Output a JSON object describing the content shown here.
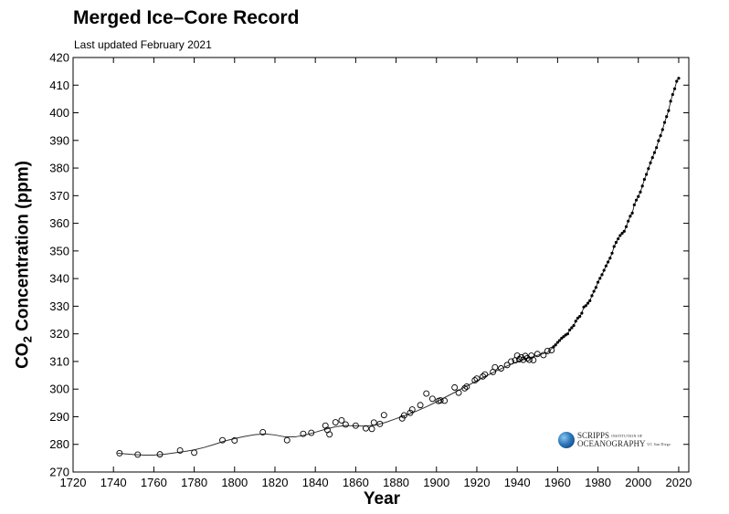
{
  "title": "Merged Ice–Core Record",
  "subtitle": "Last updated February 2021",
  "logo": {
    "line1": "SCRIPPS",
    "line1_small": "INSTITUTION OF",
    "line2": "OCEANOGRAPHY",
    "line2_small": "UC San Diego"
  },
  "chart_data": {
    "type": "scatter",
    "title": "Merged Ice–Core Record",
    "subtitle": "Last updated February 2021",
    "xlabel": "Year",
    "ylabel": {
      "prefix": "CO",
      "sub": "2",
      "suffix": " Concentration (ppm)"
    },
    "xlim": [
      1720,
      2025
    ],
    "ylim": [
      270,
      420
    ],
    "xticks": [
      1720,
      1740,
      1760,
      1780,
      1800,
      1820,
      1840,
      1860,
      1880,
      1900,
      1920,
      1940,
      1960,
      1980,
      2000,
      2020
    ],
    "yticks": [
      270,
      280,
      290,
      300,
      310,
      320,
      330,
      340,
      350,
      360,
      370,
      380,
      390,
      400,
      410,
      420
    ],
    "grid": false,
    "series": [
      {
        "marker": "open-circle",
        "points": [
          [
            1743,
            276.8
          ],
          [
            1752,
            276.3
          ],
          [
            1763,
            276.4
          ],
          [
            1773,
            277.8
          ],
          [
            1780,
            277.0
          ],
          [
            1794,
            281.5
          ],
          [
            1800,
            281.4
          ],
          [
            1814,
            284.4
          ],
          [
            1826,
            281.5
          ],
          [
            1834,
            283.8
          ],
          [
            1838,
            284.2
          ],
          [
            1845,
            286.8
          ],
          [
            1846,
            285.2
          ],
          [
            1847,
            283.6
          ],
          [
            1850,
            288.0
          ],
          [
            1853,
            288.7
          ],
          [
            1855,
            287.2
          ],
          [
            1860,
            286.8
          ],
          [
            1865,
            285.8
          ],
          [
            1868,
            285.6
          ],
          [
            1869,
            287.9
          ],
          [
            1872,
            287.4
          ],
          [
            1874,
            290.6
          ],
          [
            1883,
            289.4
          ],
          [
            1884,
            290.5
          ],
          [
            1887,
            291.4
          ],
          [
            1888,
            292.6
          ],
          [
            1892,
            294.2
          ],
          [
            1895,
            298.4
          ],
          [
            1898,
            296.5
          ],
          [
            1901,
            295.7
          ],
          [
            1902,
            295.9
          ],
          [
            1904,
            295.8
          ],
          [
            1909,
            300.6
          ],
          [
            1911,
            298.7
          ],
          [
            1914,
            300.3
          ],
          [
            1915,
            300.9
          ],
          [
            1919,
            303.2
          ],
          [
            1920,
            303.8
          ],
          [
            1923,
            304.6
          ],
          [
            1924,
            305.3
          ],
          [
            1928,
            306.2
          ],
          [
            1929,
            307.9
          ],
          [
            1932,
            307.5
          ],
          [
            1935,
            308.7
          ],
          [
            1937,
            310.0
          ],
          [
            1939,
            310.4
          ],
          [
            1940,
            312.1
          ],
          [
            1941,
            310.8
          ],
          [
            1942,
            311.5
          ],
          [
            1943,
            310.6
          ],
          [
            1944,
            312.0
          ],
          [
            1945,
            311.2
          ],
          [
            1946,
            310.6
          ],
          [
            1947,
            312.1
          ],
          [
            1948,
            310.5
          ],
          [
            1950,
            312.7
          ],
          [
            1953,
            312.3
          ],
          [
            1955,
            313.8
          ],
          [
            1957,
            314.1
          ]
        ]
      },
      {
        "marker": "dot",
        "points": [
          [
            1958,
            315.3
          ],
          [
            1959,
            316.0
          ],
          [
            1960,
            316.9
          ],
          [
            1961,
            317.6
          ],
          [
            1962,
            318.4
          ],
          [
            1963,
            319.0
          ],
          [
            1964,
            319.6
          ],
          [
            1965,
            320.0
          ],
          [
            1966,
            321.4
          ],
          [
            1967,
            322.2
          ],
          [
            1968,
            323.0
          ],
          [
            1969,
            324.6
          ],
          [
            1970,
            325.7
          ],
          [
            1971,
            326.3
          ],
          [
            1972,
            327.5
          ],
          [
            1973,
            329.7
          ],
          [
            1974,
            330.2
          ],
          [
            1975,
            331.1
          ],
          [
            1976,
            332.0
          ],
          [
            1977,
            333.8
          ],
          [
            1978,
            335.4
          ],
          [
            1979,
            336.8
          ],
          [
            1980,
            338.7
          ],
          [
            1981,
            340.1
          ],
          [
            1982,
            341.4
          ],
          [
            1983,
            343.0
          ],
          [
            1984,
            344.6
          ],
          [
            1985,
            346.0
          ],
          [
            1986,
            347.4
          ],
          [
            1987,
            349.2
          ],
          [
            1988,
            351.6
          ],
          [
            1989,
            353.1
          ],
          [
            1990,
            354.4
          ],
          [
            1991,
            355.6
          ],
          [
            1992,
            356.4
          ],
          [
            1993,
            357.1
          ],
          [
            1994,
            358.8
          ],
          [
            1995,
            360.8
          ],
          [
            1996,
            362.6
          ],
          [
            1997,
            363.7
          ],
          [
            1998,
            366.7
          ],
          [
            1999,
            368.4
          ],
          [
            2000,
            369.7
          ],
          [
            2001,
            371.3
          ],
          [
            2002,
            373.5
          ],
          [
            2003,
            375.9
          ],
          [
            2004,
            377.7
          ],
          [
            2005,
            379.8
          ],
          [
            2006,
            381.9
          ],
          [
            2007,
            383.8
          ],
          [
            2008,
            385.6
          ],
          [
            2009,
            387.4
          ],
          [
            2010,
            389.9
          ],
          [
            2011,
            391.7
          ],
          [
            2012,
            393.9
          ],
          [
            2013,
            396.5
          ],
          [
            2014,
            398.6
          ],
          [
            2015,
            400.8
          ],
          [
            2016,
            404.2
          ],
          [
            2017,
            406.6
          ],
          [
            2018,
            408.7
          ],
          [
            2019,
            411.4
          ],
          [
            2020,
            412.5
          ]
        ]
      },
      {
        "marker": "line",
        "points": [
          [
            1742,
            276.8
          ],
          [
            1745,
            276.6
          ],
          [
            1750,
            276.3
          ],
          [
            1755,
            276.1
          ],
          [
            1760,
            276.1
          ],
          [
            1765,
            276.4
          ],
          [
            1770,
            276.9
          ],
          [
            1775,
            277.4
          ],
          [
            1780,
            278.0
          ],
          [
            1785,
            278.9
          ],
          [
            1790,
            280.0
          ],
          [
            1795,
            281.2
          ],
          [
            1800,
            282.1
          ],
          [
            1805,
            282.9
          ],
          [
            1810,
            283.5
          ],
          [
            1815,
            283.8
          ],
          [
            1820,
            283.4
          ],
          [
            1825,
            282.7
          ],
          [
            1830,
            282.7
          ],
          [
            1835,
            283.4
          ],
          [
            1840,
            284.4
          ],
          [
            1845,
            285.5
          ],
          [
            1850,
            286.4
          ],
          [
            1855,
            286.8
          ],
          [
            1860,
            286.7
          ],
          [
            1865,
            286.6
          ],
          [
            1870,
            287.0
          ],
          [
            1875,
            288.0
          ],
          [
            1880,
            289.3
          ],
          [
            1885,
            290.6
          ],
          [
            1890,
            292.0
          ],
          [
            1895,
            293.6
          ],
          [
            1900,
            295.4
          ],
          [
            1905,
            297.3
          ],
          [
            1910,
            299.2
          ],
          [
            1915,
            301.1
          ],
          [
            1920,
            303.0
          ],
          [
            1925,
            304.9
          ],
          [
            1930,
            306.7
          ],
          [
            1935,
            308.4
          ],
          [
            1940,
            309.9
          ],
          [
            1945,
            311.1
          ],
          [
            1950,
            312.2
          ],
          [
            1955,
            313.3
          ],
          [
            1958,
            315.3
          ]
        ]
      }
    ]
  }
}
